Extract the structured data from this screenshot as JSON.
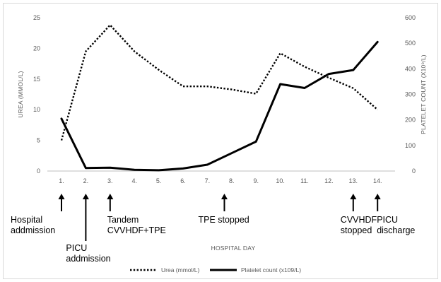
{
  "chart_data": {
    "type": "line",
    "title": "",
    "xlabel": "HOSPITAL DAY",
    "ylabel_left": "UREA (MMOL/L)",
    "ylabel_right": "PLATELET COUNT (X10⁹/L)",
    "categories": [
      "1.",
      "2.",
      "3.",
      "4.",
      "5.",
      "6.",
      "7.",
      "8.",
      "9.",
      "10.",
      "11.",
      "12.",
      "13.",
      "14."
    ],
    "y_left": {
      "min": 0,
      "max": 25,
      "ticks": [
        "0",
        "5",
        "10",
        "15",
        "20",
        "25"
      ]
    },
    "y_right": {
      "min": 0,
      "max": 600,
      "ticks": [
        "0",
        "100",
        "200",
        "300",
        "400",
        "500",
        "600"
      ]
    },
    "grid": false,
    "legend_position": "bottom",
    "series": [
      {
        "name": "Urea (mmol/L)",
        "axis": "left",
        "style": "dotted",
        "color": "#000000",
        "values": [
          5.0,
          19.5,
          23.8,
          19.5,
          16.5,
          13.8,
          13.8,
          13.3,
          12.6,
          19.2,
          17.0,
          15.2,
          13.5,
          10.0
        ]
      },
      {
        "name": "Platelet count (x109/L)",
        "axis": "right",
        "style": "solid",
        "color": "#000000",
        "values": [
          205,
          12,
          13,
          5,
          3,
          10,
          25,
          70,
          115,
          340,
          325,
          380,
          395,
          505
        ]
      }
    ],
    "annotations": [
      {
        "day_index": 0,
        "lines": [
          "Hospital",
          "addmission"
        ],
        "arrow": true,
        "row": "upper"
      },
      {
        "day_index": 1,
        "lines": [
          "PICU",
          "addmission"
        ],
        "arrow": true,
        "row": "lower"
      },
      {
        "day_index": 2,
        "lines": [
          "Tandem",
          "CVVHDF+TPE"
        ],
        "arrow": true,
        "row": "upper"
      },
      {
        "day_index": 6.7,
        "lines": [
          "TPE stopped"
        ],
        "arrow": true,
        "row": "upper"
      },
      {
        "day_index": 12,
        "lines": [
          "CVVHDF",
          "stopped"
        ],
        "arrow": true,
        "row": "upper"
      },
      {
        "day_index": 13,
        "lines": [
          "PICU",
          "discharge"
        ],
        "arrow": true,
        "row": "upper"
      }
    ]
  }
}
